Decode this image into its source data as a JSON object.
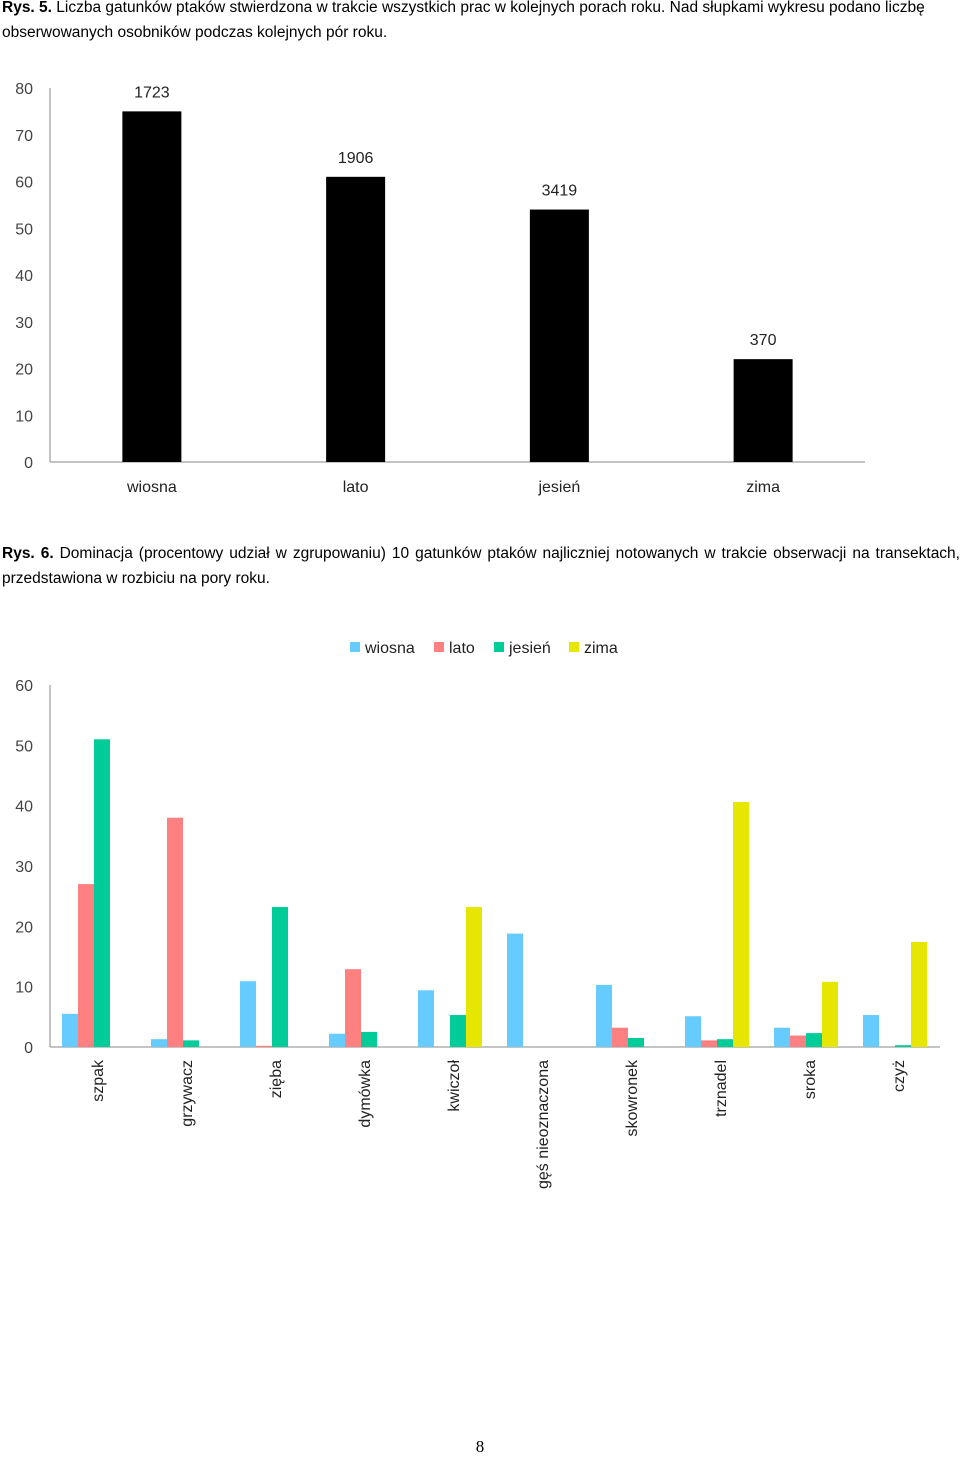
{
  "captions": {
    "fig5_label": "Rys. 5.",
    "fig5_text": " Liczba gatunków ptaków stwierdzona w trakcie wszystkich prac w kolejnych porach roku. Nad słupkami wykresu podano liczbę obserwowanych osobników podczas kolejnych pór roku.",
    "fig6_label": "Rys. 6.",
    "fig6_text": " Dominacja (procentowy udział w zgrupowaniu) 10 gatunków ptaków najliczniej notowanych w trakcie obserwacji na transektach, przedstawiona w rozbiciu na pory roku."
  },
  "page_number": "8",
  "chart_data": [
    {
      "type": "bar",
      "categories": [
        "wiosna",
        "lato",
        "jesień",
        "zima"
      ],
      "values": [
        75,
        61,
        54,
        22
      ],
      "data_labels": [
        "1723",
        "1906",
        "3419",
        "370"
      ],
      "ylim": [
        0,
        80
      ],
      "yticks": [
        0,
        10,
        20,
        30,
        40,
        50,
        60,
        70,
        80
      ],
      "bar_color": "#000000",
      "grid": false,
      "legend": "none"
    },
    {
      "type": "bar",
      "categories": [
        "szpak",
        "grzywacz",
        "zięba",
        "dymówka",
        "kwiczoł",
        "gęś nieoznaczona",
        "skowronek",
        "trznadel",
        "sroka",
        "czyż"
      ],
      "series": [
        {
          "name": "wiosna",
          "color": "#66ccff",
          "values": [
            5.5,
            1.3,
            10.9,
            2.2,
            9.4,
            18.8,
            10.3,
            5.1,
            3.2,
            5.3
          ]
        },
        {
          "name": "lato",
          "color": "#ff8080",
          "values": [
            27,
            38,
            0.2,
            12.9,
            0,
            0,
            3.2,
            1.1,
            1.9,
            0
          ]
        },
        {
          "name": "jesień",
          "color": "#00cc99",
          "values": [
            51,
            1.1,
            23.2,
            2.5,
            5.3,
            0,
            1.5,
            1.3,
            2.3,
            0.3
          ]
        },
        {
          "name": "zima",
          "color": "#e6e600",
          "values": [
            0,
            0,
            0,
            0,
            23.2,
            0,
            0,
            40.6,
            10.8,
            17.4
          ]
        }
      ],
      "ylim": [
        0,
        60
      ],
      "yticks": [
        0,
        10,
        20,
        30,
        40,
        50,
        60
      ],
      "grid": false,
      "legend": "top-center"
    }
  ]
}
